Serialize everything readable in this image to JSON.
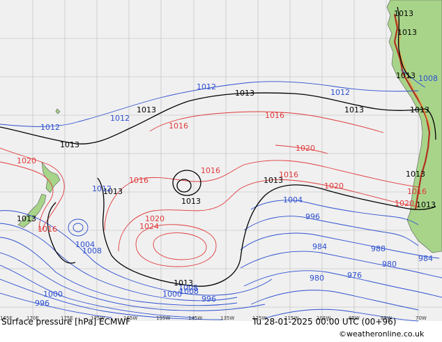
{
  "footer": {
    "title": "Surface pressure [hPa] ECMWF",
    "valid": "Tu 28-01-2025 00:00 UTC (00+96)",
    "credit": "©weatheronline.co.uk"
  },
  "colors": {
    "ocean": "#f0f0f0",
    "land": "#a8d48a",
    "isobar_ref": "#000000",
    "isobar_high": "#e0393a",
    "isobar_low": "#2c4fd0"
  },
  "longitude_ticks": [
    "165E",
    "170E",
    "175E",
    "180",
    "175W",
    "170W",
    "165W",
    "160W",
    "155W",
    "150W",
    "145W",
    "140W",
    "135W",
    "130W",
    "125W",
    "120W",
    "115W",
    "110W",
    "105W",
    "100W",
    "95W",
    "90W",
    "85W",
    "80W",
    "75W",
    "70W"
  ],
  "isobar_labels": {
    "black": [
      "1013",
      "1013",
      "1013",
      "1013",
      "1013",
      "1013",
      "1013",
      "1013",
      "1013",
      "1013",
      "1013",
      "1013",
      "1013",
      "1013",
      "1013"
    ],
    "red": [
      "1016",
      "1016",
      "1016",
      "1016",
      "1020",
      "1020",
      "1020",
      "1020",
      "1024",
      "1020",
      "1016",
      "1016",
      "1016"
    ],
    "blue": [
      "1012",
      "1012",
      "1012",
      "1012",
      "1008",
      "1004",
      "1008",
      "1004",
      "1000",
      "996",
      "996",
      "996",
      "988",
      "984",
      "984",
      "980",
      "980",
      "976",
      "1008",
      "1000",
      "1008",
      "1012"
    ]
  }
}
